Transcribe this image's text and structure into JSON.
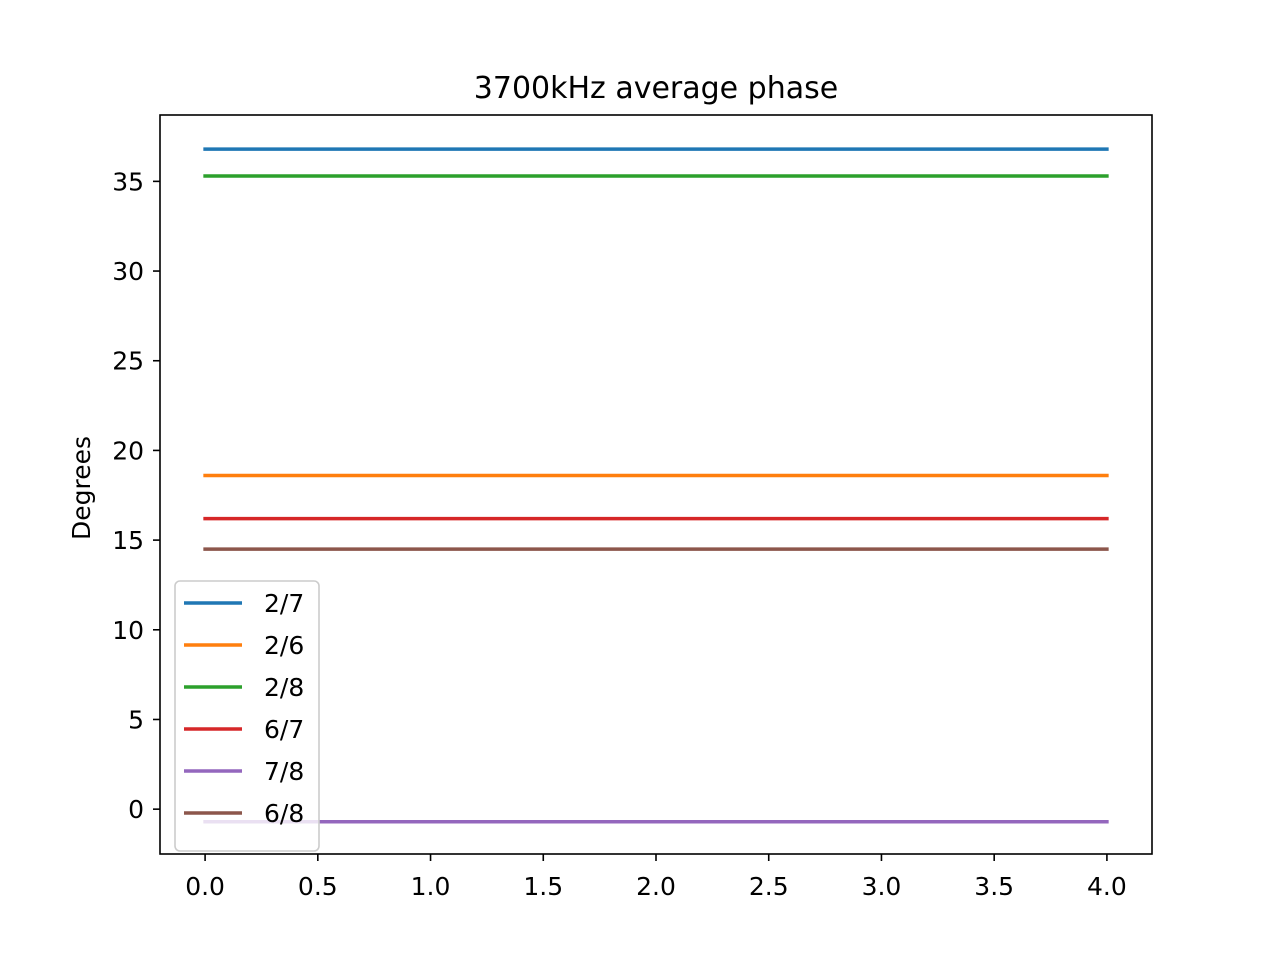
{
  "chart_data": {
    "type": "line",
    "title": "3700kHz average phase",
    "xlabel": "",
    "ylabel": "Degrees",
    "xlim": [
      -0.2,
      4.2
    ],
    "ylim": [
      -2.5,
      38.7
    ],
    "x": [
      0.0,
      1.0,
      2.0,
      3.0,
      4.0
    ],
    "xticks": [
      0.0,
      0.5,
      1.0,
      1.5,
      2.0,
      2.5,
      3.0,
      3.5,
      4.0
    ],
    "xtick_labels": [
      "0.0",
      "0.5",
      "1.0",
      "1.5",
      "2.0",
      "2.5",
      "3.0",
      "3.5",
      "4.0"
    ],
    "yticks": [
      0,
      5,
      10,
      15,
      20,
      25,
      30,
      35
    ],
    "ytick_labels": [
      "0",
      "5",
      "10",
      "15",
      "20",
      "25",
      "30",
      "35"
    ],
    "grid": false,
    "legend": "lower-left",
    "series": [
      {
        "name": "2/7",
        "color": "#1f77b4",
        "values": [
          36.8,
          36.8,
          36.8,
          36.8,
          36.8
        ]
      },
      {
        "name": "2/6",
        "color": "#ff7f0e",
        "values": [
          18.6,
          18.6,
          18.6,
          18.6,
          18.6
        ]
      },
      {
        "name": "2/8",
        "color": "#2ca02c",
        "values": [
          35.3,
          35.3,
          35.3,
          35.3,
          35.3
        ]
      },
      {
        "name": "6/7",
        "color": "#d62728",
        "values": [
          16.2,
          16.2,
          16.2,
          16.2,
          16.2
        ]
      },
      {
        "name": "7/8",
        "color": "#9467bd",
        "values": [
          -0.7,
          -0.7,
          -0.7,
          -0.7,
          -0.7
        ]
      },
      {
        "name": "6/8",
        "color": "#8c564b",
        "values": [
          14.5,
          14.5,
          14.5,
          14.5,
          14.5
        ]
      }
    ]
  }
}
